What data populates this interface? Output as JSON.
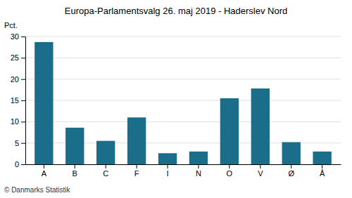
{
  "chart_data": {
    "type": "bar",
    "title": "Europa-Parlamentsvalg 26. maj 2019 - Haderslev Nord",
    "ylabel": "Pct.",
    "categories": [
      "A",
      "B",
      "C",
      "F",
      "I",
      "N",
      "O",
      "V",
      "Ø",
      "Å"
    ],
    "values": [
      28.7,
      8.6,
      5.5,
      11.0,
      2.6,
      3.0,
      15.5,
      17.8,
      5.2,
      3.0
    ],
    "color": "#1a6e8a",
    "ylim": [
      0,
      30
    ],
    "yticks": [
      0,
      5,
      10,
      15,
      20,
      25,
      30
    ],
    "grid": true,
    "annotations": [
      "© Danmarks Statistik"
    ]
  }
}
